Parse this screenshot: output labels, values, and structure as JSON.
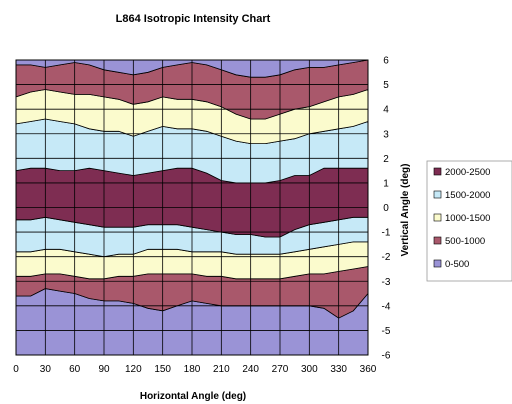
{
  "chart_data": {
    "type": "area",
    "title": "L864 Isotropic Intensity Chart",
    "xlabel": "Horizontal Angle (deg)",
    "ylabel": "Vertical Angle (deg)",
    "xlim": [
      0,
      360
    ],
    "ylim": [
      -6,
      6
    ],
    "x_ticks": [
      "0",
      "30",
      "60",
      "90",
      "120",
      "150",
      "180",
      "210",
      "240",
      "270",
      "300",
      "330",
      "360"
    ],
    "y_ticks": [
      "6",
      "5",
      "4",
      "3",
      "2",
      "1",
      "0",
      "-1",
      "-2",
      "-3",
      "-4",
      "-5",
      "-6"
    ],
    "grid": true,
    "legend_position": "right",
    "x": [
      0,
      15,
      30,
      45,
      60,
      75,
      90,
      105,
      120,
      135,
      150,
      165,
      180,
      195,
      210,
      225,
      240,
      255,
      270,
      285,
      300,
      315,
      330,
      345,
      360
    ],
    "boundaries": [
      {
        "between": "500-1000 / 0-500",
        "values": [
          -3.6,
          -3.6,
          -3.3,
          -3.4,
          -3.5,
          -3.7,
          -3.8,
          -3.8,
          -3.9,
          -4.1,
          -4.2,
          -4.0,
          -3.8,
          -3.9,
          -4.0,
          -4.0,
          -4.0,
          -4.0,
          -4.0,
          -4.0,
          -4.0,
          -4.1,
          -4.5,
          -4.2,
          -3.5
        ]
      },
      {
        "between": "1000-1500 / 500-1000",
        "values": [
          -2.8,
          -2.8,
          -2.7,
          -2.7,
          -2.8,
          -2.9,
          -2.9,
          -2.8,
          -2.8,
          -2.7,
          -2.7,
          -2.7,
          -2.7,
          -2.8,
          -2.8,
          -2.9,
          -2.9,
          -2.9,
          -2.9,
          -2.8,
          -2.7,
          -2.7,
          -2.6,
          -2.5,
          -2.4
        ]
      },
      {
        "between": "1500-2000 / 1000-1500",
        "values": [
          -1.8,
          -1.8,
          -1.7,
          -1.7,
          -1.8,
          -1.9,
          -2.0,
          -1.9,
          -1.9,
          -1.7,
          -1.7,
          -1.7,
          -1.8,
          -1.8,
          -1.8,
          -1.9,
          -1.9,
          -1.9,
          -1.9,
          -1.8,
          -1.7,
          -1.6,
          -1.5,
          -1.4,
          -1.4
        ]
      },
      {
        "between": "2000-2500 / 1500-2000",
        "values": [
          -0.5,
          -0.5,
          -0.4,
          -0.5,
          -0.6,
          -0.7,
          -0.8,
          -0.8,
          -0.8,
          -0.7,
          -0.7,
          -0.7,
          -0.8,
          -0.9,
          -1.0,
          -1.1,
          -1.1,
          -1.2,
          -1.2,
          -0.9,
          -0.7,
          -0.6,
          -0.5,
          -0.4,
          -0.4
        ]
      },
      {
        "between": "1500-2000 / 2000-2500",
        "values": [
          1.5,
          1.6,
          1.6,
          1.5,
          1.5,
          1.6,
          1.5,
          1.4,
          1.3,
          1.4,
          1.5,
          1.6,
          1.6,
          1.4,
          1.1,
          1.0,
          1.0,
          1.0,
          1.1,
          1.3,
          1.3,
          1.6,
          1.6,
          1.6,
          1.6
        ]
      },
      {
        "between": "1000-1500 / 1500-2000",
        "values": [
          3.4,
          3.5,
          3.6,
          3.5,
          3.4,
          3.2,
          3.1,
          3.1,
          2.9,
          3.1,
          3.3,
          3.2,
          3.2,
          3.1,
          2.9,
          2.7,
          2.6,
          2.6,
          2.7,
          2.8,
          3.0,
          3.1,
          3.2,
          3.3,
          3.5
        ]
      },
      {
        "between": "500-1000 / 1000-1500",
        "values": [
          4.5,
          4.7,
          4.8,
          4.7,
          4.6,
          4.6,
          4.5,
          4.4,
          4.2,
          4.3,
          4.5,
          4.4,
          4.4,
          4.3,
          4.1,
          3.8,
          3.6,
          3.6,
          3.8,
          4.0,
          4.1,
          4.3,
          4.5,
          4.6,
          4.8
        ]
      },
      {
        "between": "0-500 / 500-1000",
        "values": [
          5.8,
          5.8,
          5.7,
          5.8,
          5.9,
          5.8,
          5.6,
          5.5,
          5.4,
          5.5,
          5.7,
          5.8,
          5.9,
          5.8,
          5.6,
          5.4,
          5.3,
          5.3,
          5.4,
          5.6,
          5.7,
          5.7,
          5.8,
          5.9,
          6.0
        ]
      }
    ],
    "bands": [
      {
        "name": "0-500",
        "color": "#9a93d6",
        "lower": "bottom",
        "upper": 0
      },
      {
        "name": "500-1000",
        "color": "#a9586b",
        "lower": 0,
        "upper": 1
      },
      {
        "name": "1000-1500",
        "color": "#fbfbcd",
        "lower": 1,
        "upper": 2
      },
      {
        "name": "1500-2000",
        "color": "#c6e9f7",
        "lower": 2,
        "upper": 3
      },
      {
        "name": "2000-2500",
        "color": "#7e2d52",
        "lower": 3,
        "upper": 4
      },
      {
        "name": "1500-2000",
        "color": "#c6e9f7",
        "lower": 4,
        "upper": 5
      },
      {
        "name": "1000-1500",
        "color": "#fbfbcd",
        "lower": 5,
        "upper": 6
      },
      {
        "name": "500-1000",
        "color": "#a9586b",
        "lower": 6,
        "upper": 7
      },
      {
        "name": "0-500",
        "color": "#9a93d6",
        "lower": 7,
        "upper": "top"
      }
    ],
    "legend": [
      {
        "label": "2000-2500",
        "color": "#7e2d52"
      },
      {
        "label": "1500-2000",
        "color": "#c6e9f7"
      },
      {
        "label": "1000-1500",
        "color": "#fbfbcd"
      },
      {
        "label": "500-1000",
        "color": "#a9586b"
      },
      {
        "label": "0-500",
        "color": "#9a93d6"
      }
    ]
  }
}
